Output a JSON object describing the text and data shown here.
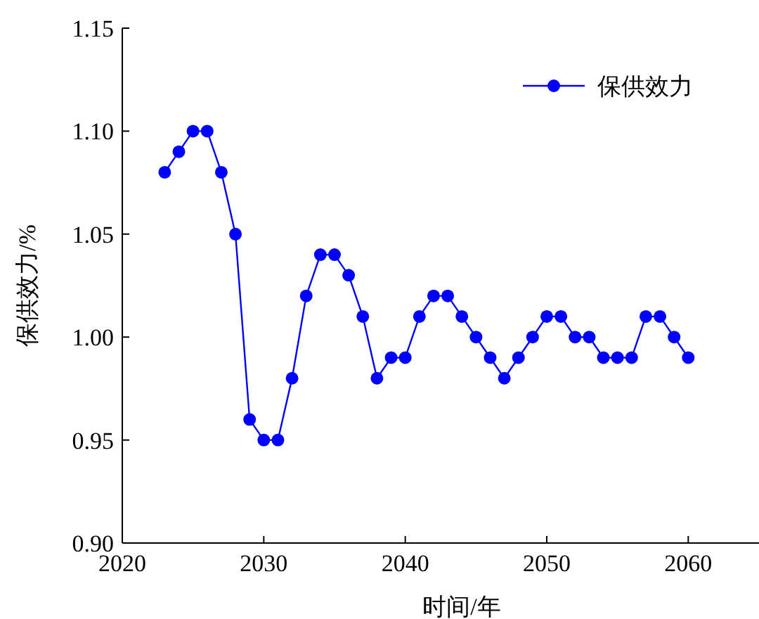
{
  "chart_data": {
    "type": "line",
    "xlabel": "时间/年",
    "ylabel": "保供效力/%",
    "legend": "top right",
    "marker": "circle",
    "line_style": "solid",
    "grid": false,
    "x": [
      2023,
      2024,
      2025,
      2026,
      2027,
      2028,
      2029,
      2030,
      2031,
      2032,
      2033,
      2034,
      2035,
      2036,
      2037,
      2038,
      2039,
      2040,
      2041,
      2042,
      2043,
      2044,
      2045,
      2046,
      2047,
      2048,
      2049,
      2050,
      2051,
      2052,
      2053,
      2054,
      2055,
      2056,
      2057,
      2058,
      2059,
      2060
    ],
    "series": [
      {
        "name": "保供效力",
        "color": "#0000ff",
        "values": [
          1.08,
          1.09,
          1.1,
          1.1,
          1.08,
          1.05,
          0.96,
          0.95,
          0.95,
          0.98,
          1.02,
          1.04,
          1.04,
          1.03,
          1.01,
          0.98,
          0.99,
          0.99,
          1.01,
          1.02,
          1.02,
          1.01,
          1.0,
          0.99,
          0.98,
          0.99,
          1.0,
          1.01,
          1.01,
          1.0,
          1.0,
          0.99,
          0.99,
          0.99,
          1.01,
          1.01,
          1.0,
          0.99
        ]
      }
    ],
    "xlim": [
      2020,
      2065
    ],
    "xticks": [
      2020,
      2030,
      2040,
      2050,
      2060
    ],
    "ylim": [
      0.9,
      1.15
    ],
    "yticks": [
      {
        "value": 0.9,
        "label": "0.90"
      },
      {
        "value": 0.95,
        "label": "0.95"
      },
      {
        "value": 1.0,
        "label": "1.00"
      },
      {
        "value": 1.05,
        "label": "1.05"
      },
      {
        "value": 1.1,
        "label": "1.10"
      },
      {
        "value": 1.15,
        "label": "1.15"
      }
    ]
  }
}
